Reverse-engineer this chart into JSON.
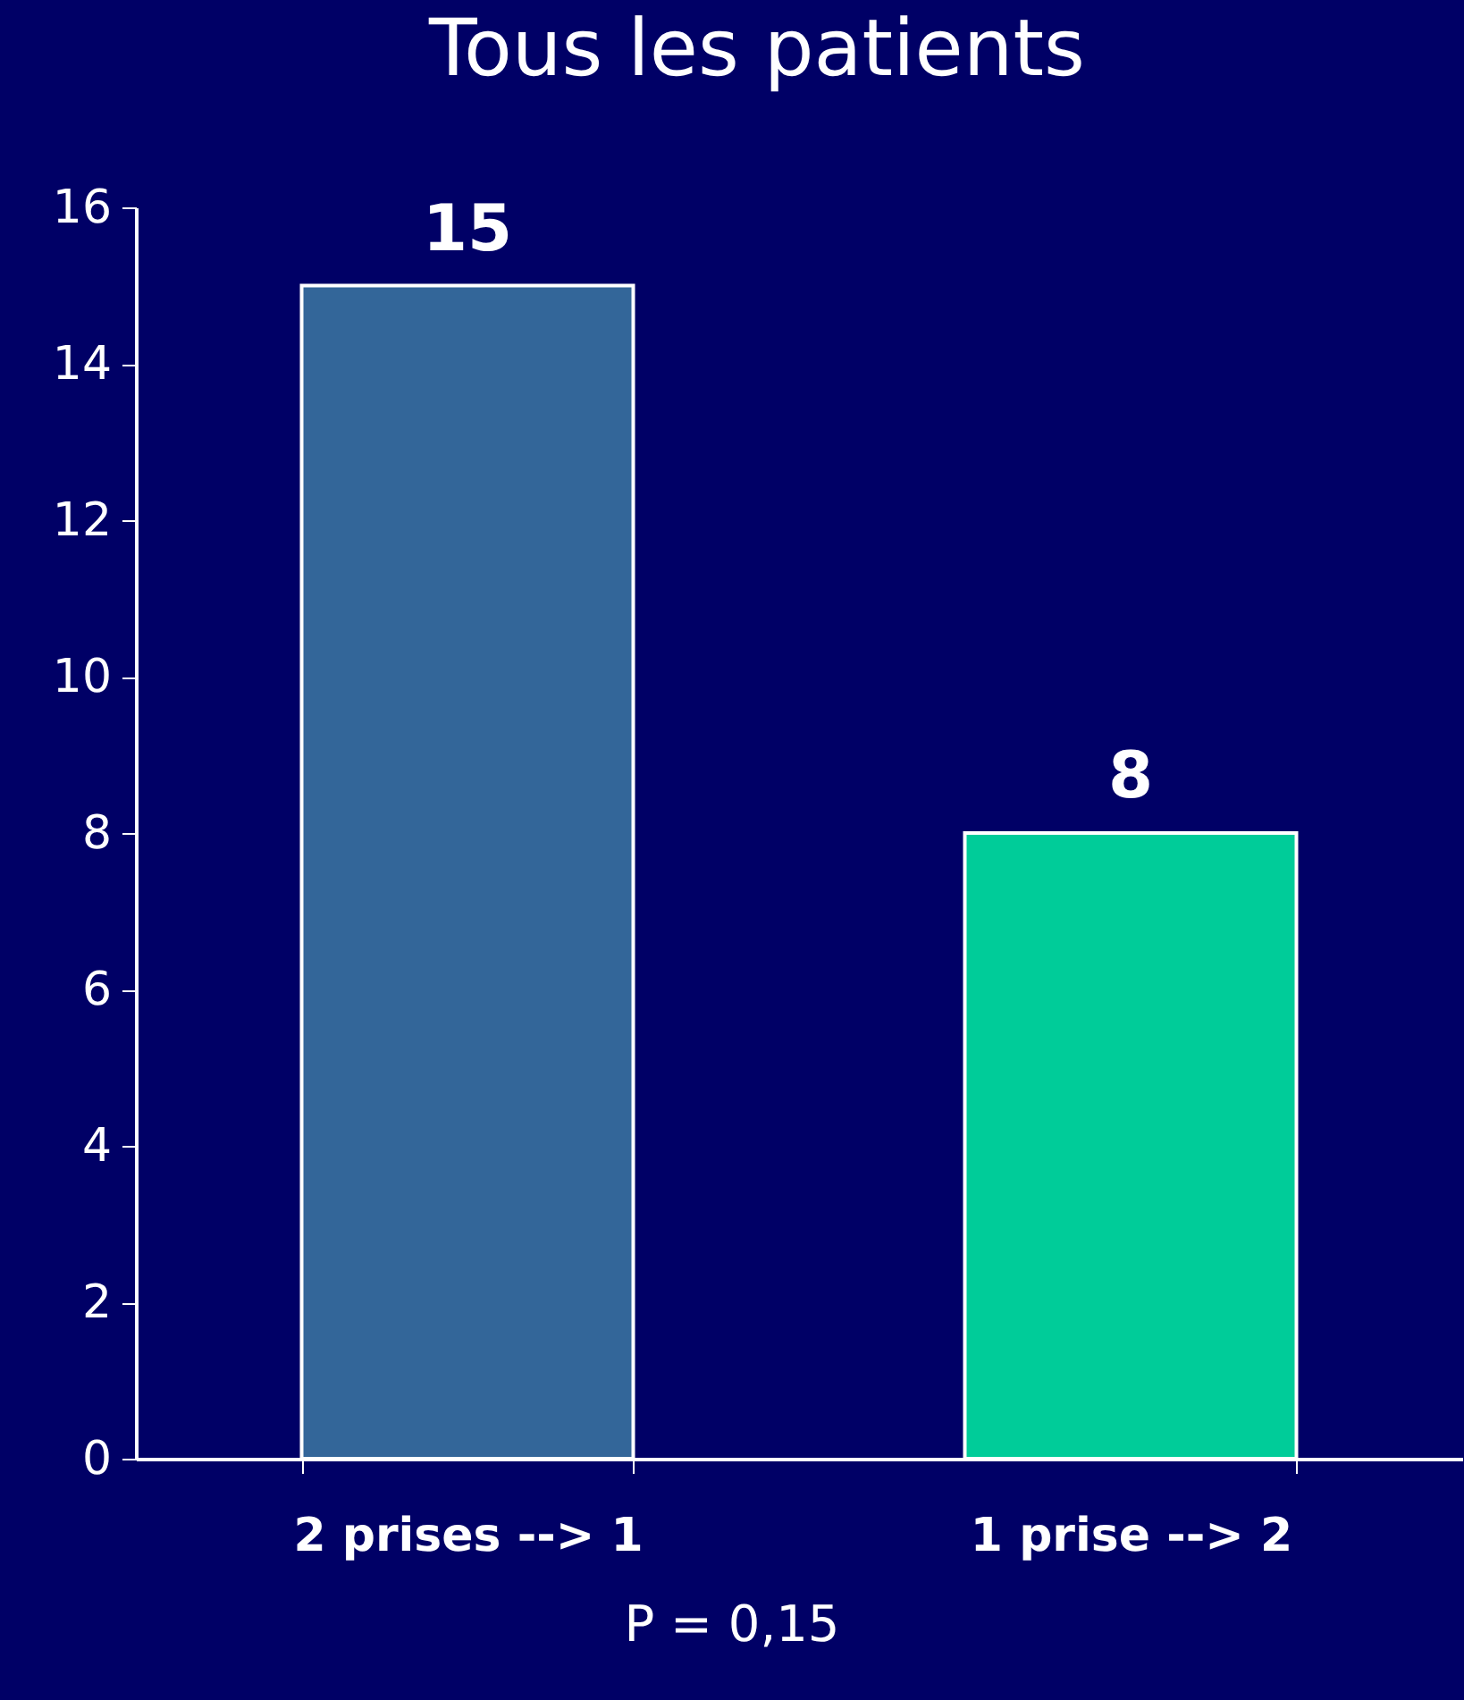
{
  "chart_data": {
    "type": "bar",
    "title": "Tous les patients",
    "categories": [
      "2 prises --> 1",
      "1 prise --> 2"
    ],
    "values": [
      15,
      8
    ],
    "colors": [
      "#336699",
      "#00cc99"
    ],
    "ylim": [
      0,
      16
    ],
    "yticks": [
      0,
      2,
      4,
      6,
      8,
      10,
      12,
      14,
      16
    ],
    "grid": false,
    "data_labels": true,
    "legend": false,
    "annotations": [
      "P = 0,15"
    ]
  }
}
